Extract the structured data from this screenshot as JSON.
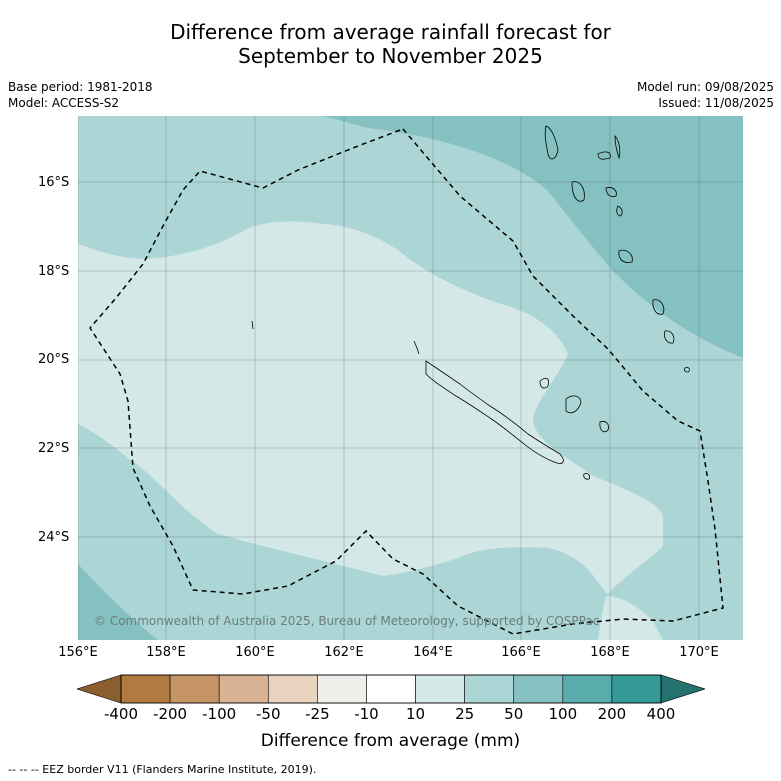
{
  "title_line1": "Difference from average rainfall forecast for",
  "title_line2": "September to November 2025",
  "meta": {
    "base_period": "Base period: 1981-2018",
    "model": "Model: ACCESS-S2",
    "model_run": "Model run: 09/08/2025",
    "issued": "Issued: 11/08/2025"
  },
  "lat_labels": [
    "16°S",
    "18°S",
    "20°S",
    "22°S",
    "24°S"
  ],
  "lon_labels": [
    "156°E",
    "158°E",
    "160°E",
    "162°E",
    "164°E",
    "166°E",
    "168°E",
    "170°E"
  ],
  "copyright": "© Commonwealth of Australia 2025, Bureau of Meteorology, supported by COSPPac",
  "colorbar": {
    "ticks": [
      "-400",
      "-200",
      "-100",
      "-50",
      "-25",
      "-10",
      "10",
      "25",
      "50",
      "100",
      "200",
      "400"
    ],
    "colors": [
      "#b07a41",
      "#c59466",
      "#d8b393",
      "#e8d3bf",
      "#f0eeeb",
      "#ffffff",
      "#d5e8e8",
      "#acd5d5",
      "#86c1c1",
      "#5aacac",
      "#359b98"
    ],
    "under_color": "#8b5e2e",
    "over_color": "#24726e",
    "label": "Difference from average (mm)"
  },
  "footnote": "--  --  -- EEZ border V11 (Flanders Marine Institute, 2019)."
}
